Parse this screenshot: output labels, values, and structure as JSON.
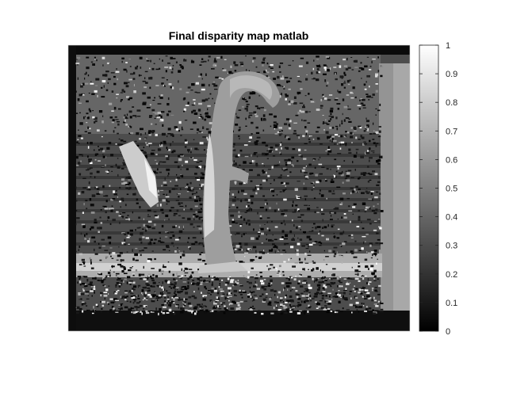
{
  "chart_data": {
    "type": "heatmap",
    "title": "Final disparity map matlab",
    "colormap": "gray",
    "clim": [
      0,
      1
    ],
    "colorbar": {
      "ticks": [
        0,
        0.1,
        0.2,
        0.3,
        0.4,
        0.5,
        0.6,
        0.7,
        0.8,
        0.9,
        1
      ],
      "tick_labels": [
        "0",
        "0.1",
        "0.2",
        "0.3",
        "0.4",
        "0.5",
        "0.6",
        "0.7",
        "0.8",
        "0.9",
        "1"
      ],
      "location": "east"
    },
    "image": "grayscale disparity map of an indoor scene with a standing figure"
  }
}
